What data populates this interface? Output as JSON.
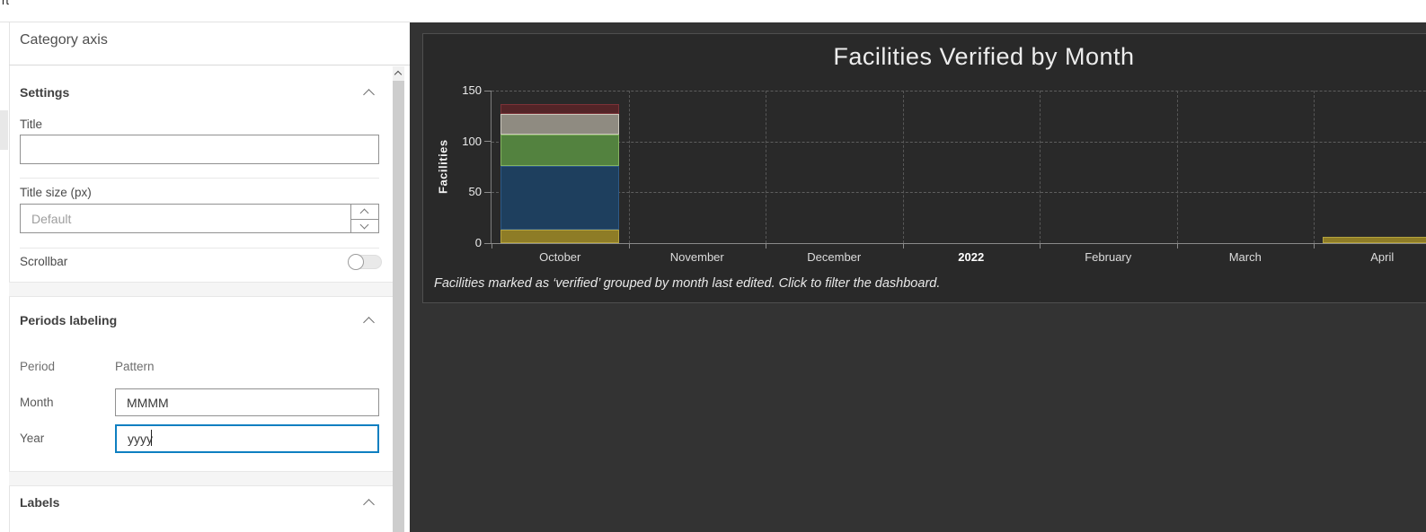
{
  "window": {
    "top_fragment": "rt"
  },
  "panel": {
    "title": "Category axis",
    "settings": {
      "header": "Settings",
      "title_label": "Title",
      "title_value": "",
      "title_size_label": "Title size (px)",
      "title_size_placeholder": "Default",
      "scrollbar_label": "Scrollbar",
      "scrollbar_on": false
    },
    "periods": {
      "header": "Periods labeling",
      "period_col": "Period",
      "pattern_col": "Pattern",
      "month_label": "Month",
      "month_value": "MMMM",
      "year_label": "Year",
      "year_value": "yyyy"
    },
    "labels_header": "Labels"
  },
  "colors": {
    "focus_accent": "#0e7fc1",
    "panel_dark": "#333333",
    "chart_background": "#292929"
  },
  "chart_data": {
    "type": "bar",
    "stacked": true,
    "title": "Facilities Verified by Month",
    "ylabel": "Facilities",
    "caption": "Facilities marked as ‘verified’ grouped by month last edited. Click to filter the dashboard.",
    "categories": [
      "October",
      "November",
      "December",
      "2022",
      "February",
      "March",
      "April"
    ],
    "emphasized_category_index": 3,
    "series": [
      {
        "name": "segment-yellow",
        "color": "#8e7c26",
        "border": "#b5a33e",
        "values": [
          13,
          0,
          0,
          0,
          0,
          0,
          6
        ]
      },
      {
        "name": "segment-blue",
        "color": "#1e3f5e",
        "border": "#2e5a88",
        "values": [
          63,
          0,
          0,
          0,
          0,
          0,
          0
        ]
      },
      {
        "name": "segment-green",
        "color": "#53823f",
        "border": "#84b460",
        "values": [
          31,
          0,
          0,
          0,
          0,
          0,
          0
        ]
      },
      {
        "name": "segment-gray",
        "color": "#8f8b81",
        "border": "#ccc8bc",
        "values": [
          20,
          0,
          0,
          0,
          0,
          0,
          0
        ]
      },
      {
        "name": "segment-maroon",
        "color": "#532427",
        "border": "#7a3238",
        "values": [
          10,
          0,
          0,
          0,
          0,
          0,
          0
        ]
      }
    ],
    "ylim": [
      0,
      150
    ],
    "yticks": [
      0,
      50,
      100,
      150
    ],
    "grid": "dashed",
    "legend": "none"
  }
}
